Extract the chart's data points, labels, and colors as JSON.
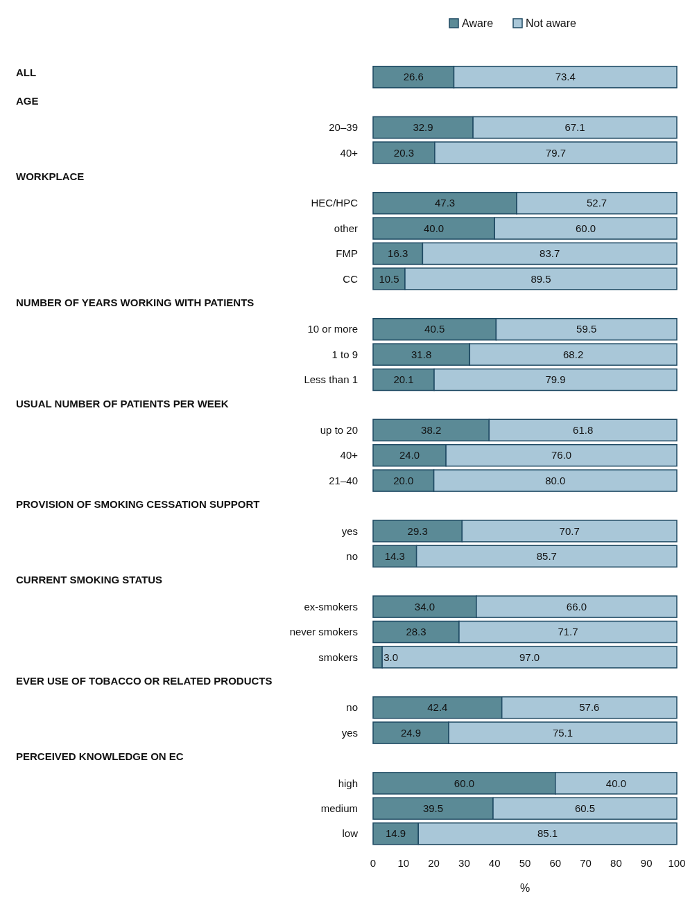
{
  "chart_data": {
    "type": "bar",
    "orientation": "horizontal",
    "stacked": true,
    "legend": "top",
    "xlabel": "%",
    "xlim": [
      0,
      100
    ],
    "xticks": [
      0,
      10,
      20,
      30,
      40,
      50,
      60,
      70,
      80,
      90,
      100
    ],
    "annotations": [
      "ALL",
      "AGE",
      "WORKPLACE",
      "NUMBER OF YEARS WORKING WITH PATIENTS",
      "USUAL NUMBER OF PATIENTS PER WEEK",
      "PROVISION OF SMOKING CESSATION SUPPORT",
      "CURRENT SMOKING STATUS",
      "EVER USE OF TOBACCO OR RELATED PRODUCTS",
      "PERCEIVED KNOWLEDGE ON EC"
    ],
    "categories": [
      null,
      null,
      "20–39",
      "40+",
      null,
      "HEC/HPC",
      "other",
      "FMP",
      "CC",
      null,
      "10 or more",
      "1 to 9",
      "Less than 1",
      null,
      "up to 20",
      "40+",
      "21–40",
      null,
      "yes",
      "no",
      null,
      "ex-smokers",
      "never smokers",
      "smokers",
      null,
      "no",
      "yes",
      null,
      "high",
      "medium",
      "low"
    ],
    "series": [
      {
        "name": "Aware",
        "color": "#5b8a96",
        "values": [
          26.6,
          null,
          32.9,
          20.3,
          null,
          47.3,
          40.0,
          16.3,
          10.5,
          null,
          40.5,
          31.8,
          20.1,
          null,
          38.2,
          24.0,
          20.0,
          null,
          29.3,
          14.3,
          null,
          34.0,
          28.3,
          3.0,
          null,
          42.4,
          24.9,
          null,
          60.0,
          39.5,
          14.9
        ],
        "value_labels": [
          "26.6",
          null,
          "32.9",
          "20.3",
          null,
          "47.3",
          "40.0",
          "16.3",
          "10.5",
          null,
          "40.5",
          "31.8",
          "20.1",
          null,
          "38.2",
          "24.0",
          "20.0",
          null,
          "29.3",
          "14.3",
          null,
          "34.0",
          "28.3",
          "3.0",
          null,
          "42.4",
          "24.9",
          null,
          "60.0",
          "39.5",
          "14.9"
        ]
      },
      {
        "name": "Not aware",
        "color": "#a9c7d8",
        "values": [
          73.4,
          null,
          67.1,
          79.7,
          null,
          52.7,
          60.0,
          83.7,
          89.5,
          null,
          59.5,
          68.2,
          79.9,
          null,
          61.8,
          76.0,
          80.0,
          null,
          70.7,
          85.7,
          null,
          66.0,
          71.7,
          97.0,
          null,
          57.6,
          75.1,
          null,
          40.0,
          60.5,
          85.1
        ],
        "value_labels": [
          "73.4",
          null,
          "67.1",
          "79.7",
          null,
          "52.7",
          "60.0",
          "83.7",
          "89.5",
          null,
          "59.5",
          "68.2",
          "79.9",
          null,
          "61.8",
          "76.0",
          "80.0",
          null,
          "70.7",
          "85.7",
          null,
          "66.0",
          "71.7",
          "97.0",
          null,
          "57.6",
          "75.1",
          null,
          "40.0",
          "60.5",
          "85.1"
        ]
      }
    ]
  }
}
